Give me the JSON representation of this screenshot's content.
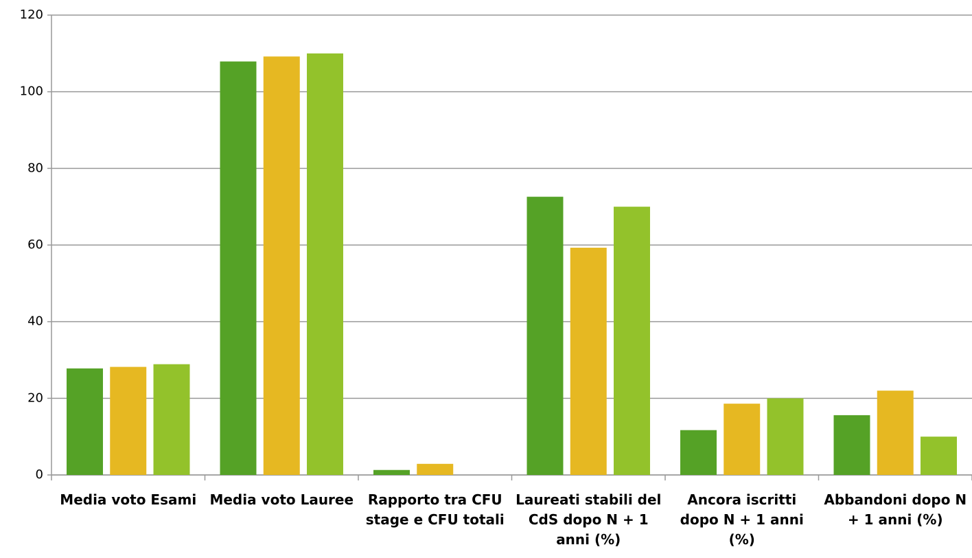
{
  "chart_data": {
    "type": "bar",
    "categories": [
      "Media voto Esami",
      "Media voto Lauree",
      "Rapporto tra CFU stage e CFU totali",
      "Laureati stabili del CdS dopo N + 1 anni (%)",
      "Ancora iscritti dopo N + 1 anni (%)",
      "Abbandoni dopo N + 1 anni (%)"
    ],
    "series": [
      {
        "color": "#55a226",
        "values": [
          27.8,
          107.9,
          1.3,
          72.6,
          11.7,
          15.6
        ]
      },
      {
        "color": "#e6b822",
        "values": [
          28.2,
          109.2,
          2.9,
          59.3,
          18.6,
          22.0
        ]
      },
      {
        "color": "#93c22b",
        "values": [
          28.9,
          110.0,
          0,
          70.0,
          20.0,
          10.0
        ]
      }
    ],
    "ylim": [
      0,
      120
    ],
    "yticks": [
      0,
      20,
      40,
      60,
      80,
      100,
      120
    ],
    "grid": true
  }
}
